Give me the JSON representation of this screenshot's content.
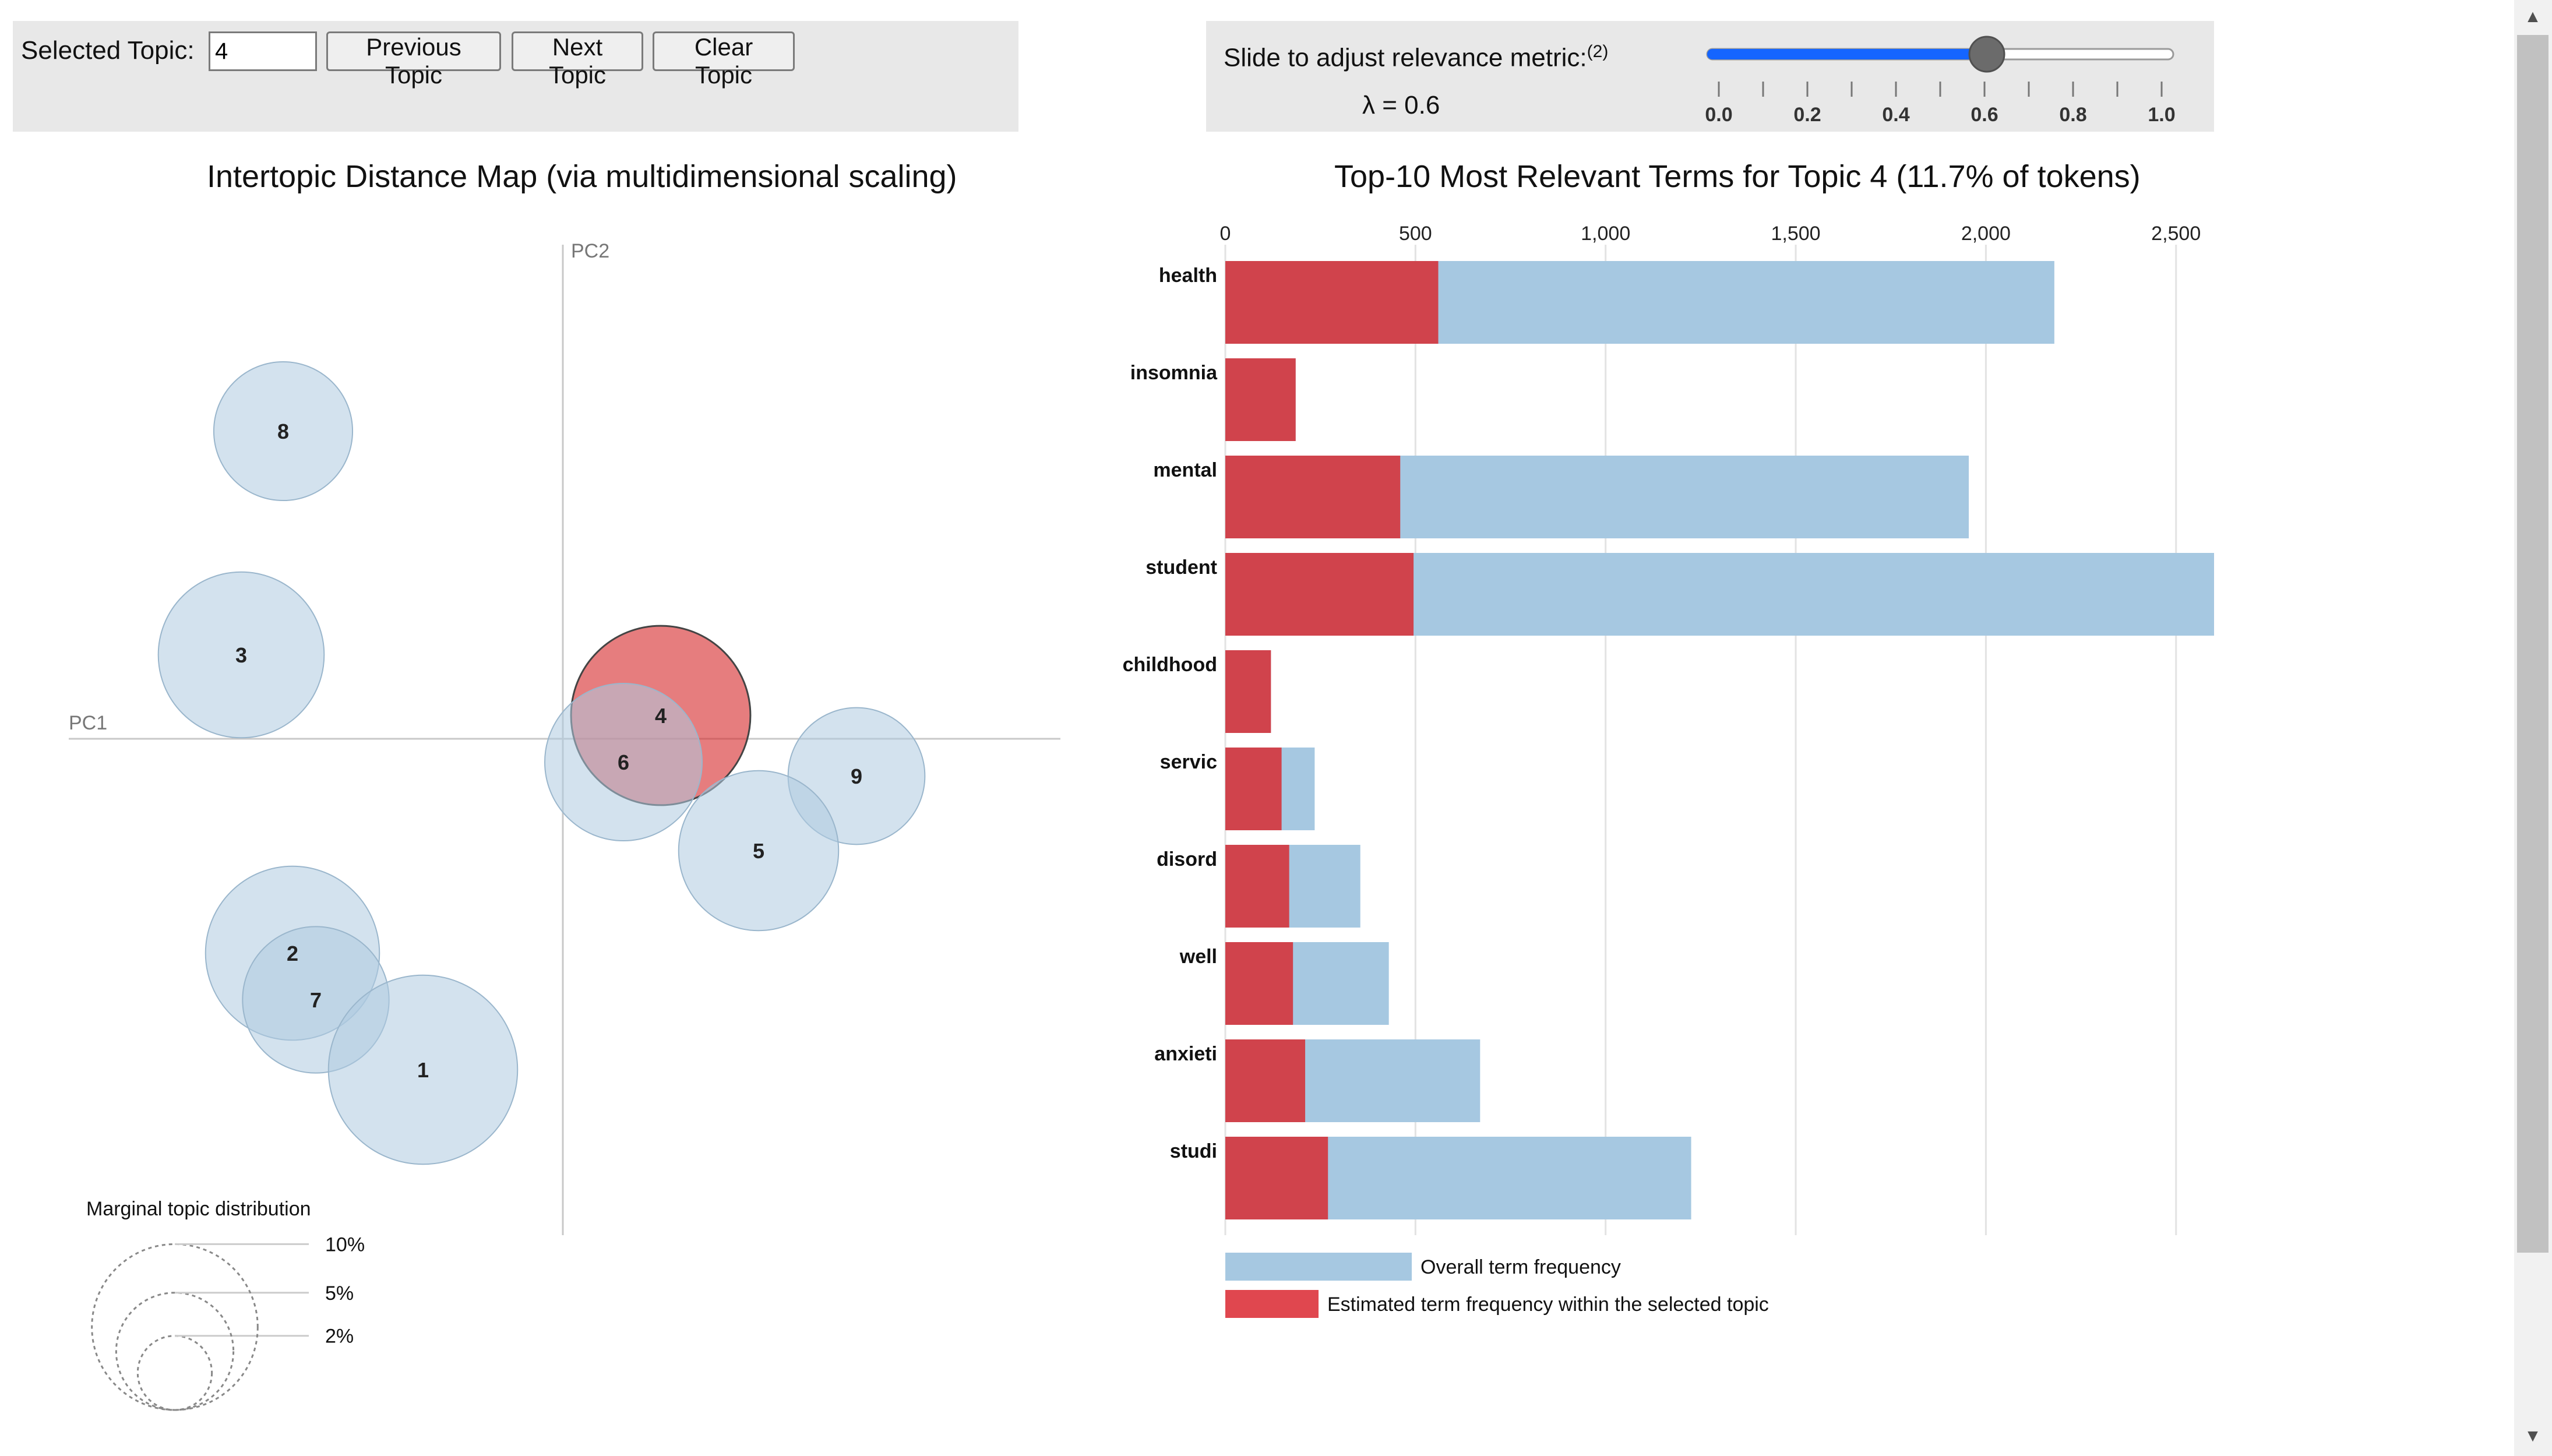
{
  "controls": {
    "selected_topic_label": "Selected Topic:",
    "selected_topic_value": "4",
    "prev_label": "Previous Topic",
    "next_label": "Next Topic",
    "clear_label": "Clear Topic",
    "slider_label": "Slide to adjust relevance metric:",
    "slider_footnote": "(2)",
    "lambda_text": "λ = 0.6",
    "lambda_value": 0.6,
    "slider_ticks": [
      "0.0",
      "0.2",
      "0.4",
      "0.6",
      "0.8",
      "1.0"
    ]
  },
  "colors": {
    "topic_bubble": "#aecbe0",
    "selected_bubble": "#d62728",
    "overall_bar": "#a6c8e1",
    "topic_bar": "#d0434c",
    "panel_bg": "#e8e8e8",
    "slider_fill": "#1565ff"
  },
  "chart_data": [
    {
      "type": "scatter",
      "title": "Intertopic Distance Map (via multidimensional scaling)",
      "xlabel": "PC1",
      "ylabel": "PC2",
      "selected_topic": 4,
      "points": [
        {
          "topic": "8",
          "x": -0.3,
          "y": 0.33,
          "size_pct": 7.0
        },
        {
          "topic": "3",
          "x": -0.345,
          "y": 0.09,
          "size_pct": 10.0
        },
        {
          "topic": "4",
          "x": 0.105,
          "y": 0.025,
          "size_pct": 11.7
        },
        {
          "topic": "6",
          "x": 0.065,
          "y": -0.025,
          "size_pct": 9.0
        },
        {
          "topic": "9",
          "x": 0.315,
          "y": -0.04,
          "size_pct": 6.8
        },
        {
          "topic": "5",
          "x": 0.21,
          "y": -0.12,
          "size_pct": 9.3
        },
        {
          "topic": "2",
          "x": -0.29,
          "y": -0.23,
          "size_pct": 11.0
        },
        {
          "topic": "7",
          "x": -0.265,
          "y": -0.28,
          "size_pct": 7.8
        },
        {
          "topic": "1",
          "x": -0.15,
          "y": -0.355,
          "size_pct": 13.0
        }
      ],
      "legend": {
        "title": "Marginal topic distribution",
        "items": [
          {
            "label": "2%",
            "pct": 2
          },
          {
            "label": "5%",
            "pct": 5
          },
          {
            "label": "10%",
            "pct": 10
          }
        ]
      }
    },
    {
      "type": "bar",
      "orientation": "horizontal",
      "title": "Top-10 Most Relevant Terms for Topic 4 (11.7% of tokens)",
      "categories": [
        "health",
        "insomnia",
        "mental",
        "student",
        "childhood",
        "servic",
        "disord",
        "well",
        "anxieti",
        "studi"
      ],
      "series": [
        {
          "name": "Overall term frequency",
          "values": [
            2180,
            185,
            1955,
            2600,
            120,
            235,
            355,
            430,
            670,
            1225
          ]
        },
        {
          "name": "Estimated term frequency within the selected topic",
          "values": [
            560,
            185,
            460,
            495,
            120,
            148,
            168,
            178,
            210,
            270
          ]
        }
      ],
      "xlim": [
        0,
        2600
      ],
      "xticks": [
        "0",
        "500",
        "1,000",
        "1,500",
        "2,000",
        "2,500"
      ]
    }
  ]
}
